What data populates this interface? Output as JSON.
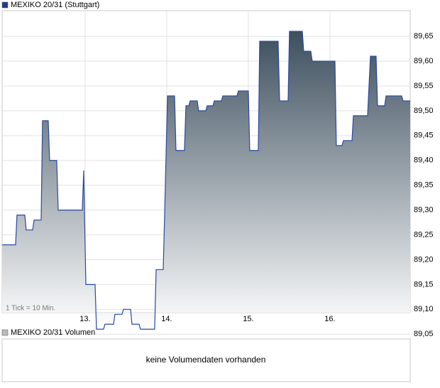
{
  "chart_data": {
    "type": "area",
    "title": "MEXIKO 20/31 (Stuttgart)",
    "color": "#2a4aa0",
    "annotation": "1 Tick = 10 Min.",
    "x": [
      11.983,
      12.148,
      12.165,
      12.261,
      12.278,
      12.357,
      12.374,
      12.461,
      12.478,
      12.548,
      12.565,
      12.652,
      12.67,
      12.965,
      12.983,
      13.009,
      13.122,
      13.139,
      13.226,
      13.243,
      13.348,
      13.365,
      13.452,
      13.47,
      13.557,
      13.574,
      13.661,
      13.678,
      13.852,
      13.87,
      13.957,
      13.974,
      14.009,
      14.096,
      14.113,
      14.217,
      14.235,
      14.27,
      14.287,
      14.374,
      14.391,
      14.478,
      14.496,
      14.565,
      14.583,
      14.67,
      14.687,
      14.861,
      14.878,
      15.0,
      15.017,
      15.122,
      15.139,
      15.365,
      15.383,
      15.487,
      15.504,
      15.661,
      15.678,
      15.765,
      15.783,
      16.061,
      16.078,
      16.148,
      16.165,
      16.27,
      16.287,
      16.461,
      16.496,
      16.565,
      16.583,
      16.67,
      16.687,
      16.878,
      16.896,
      16.983
    ],
    "values": [
      89.23,
      89.23,
      89.29,
      89.29,
      89.26,
      89.26,
      89.28,
      89.28,
      89.48,
      89.48,
      89.4,
      89.4,
      89.3,
      89.3,
      89.38,
      89.15,
      89.15,
      89.06,
      89.06,
      89.07,
      89.07,
      89.09,
      89.09,
      89.1,
      89.1,
      89.07,
      89.07,
      89.06,
      89.06,
      89.18,
      89.18,
      89.29,
      89.53,
      89.53,
      89.42,
      89.42,
      89.51,
      89.51,
      89.52,
      89.52,
      89.5,
      89.5,
      89.51,
      89.51,
      89.52,
      89.52,
      89.53,
      89.53,
      89.54,
      89.54,
      89.42,
      89.42,
      89.64,
      89.64,
      89.52,
      89.52,
      89.66,
      89.66,
      89.62,
      89.62,
      89.6,
      89.6,
      89.43,
      89.43,
      89.44,
      89.44,
      89.49,
      89.49,
      89.61,
      89.61,
      89.51,
      89.51,
      89.53,
      89.53,
      89.52,
      89.52
    ],
    "xlim": [
      11.983,
      16.983
    ],
    "xticks": [
      {
        "value": 13,
        "label": "13."
      },
      {
        "value": 14,
        "label": "14."
      },
      {
        "value": 15,
        "label": "15."
      },
      {
        "value": 16,
        "label": "16."
      }
    ],
    "ylim": [
      89.0933,
      89.7017
    ],
    "yticks": [
      {
        "value": 89.05,
        "label": "89,05"
      },
      {
        "value": 89.1,
        "label": "89,10"
      },
      {
        "value": 89.15,
        "label": "89,15"
      },
      {
        "value": 89.2,
        "label": "89,20"
      },
      {
        "value": 89.25,
        "label": "89,25"
      },
      {
        "value": 89.3,
        "label": "89,30"
      },
      {
        "value": 89.35,
        "label": "89,35"
      },
      {
        "value": 89.4,
        "label": "89,40"
      },
      {
        "value": 89.45,
        "label": "89,45"
      },
      {
        "value": 89.5,
        "label": "89,50"
      },
      {
        "value": 89.55,
        "label": "89,55"
      },
      {
        "value": 89.6,
        "label": "89,60"
      },
      {
        "value": 89.65,
        "label": "89,65"
      }
    ],
    "grid": true
  },
  "volume_panel": {
    "title": "MEXIKO 20/31 Volumen",
    "message": "keine Volumendaten vorhanden"
  }
}
